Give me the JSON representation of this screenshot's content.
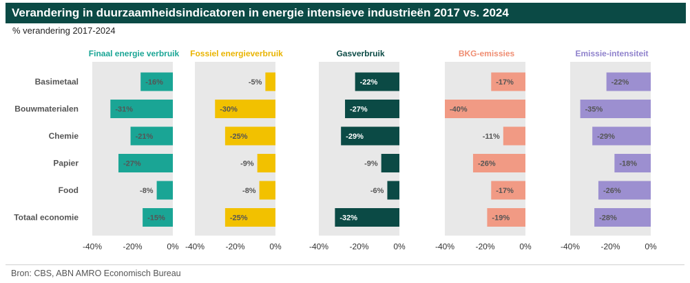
{
  "title": "Verandering in duurzaamheidsindicatoren in energie intensieve industrieën 2017 vs. 2024",
  "subtitle": "% verandering 2017-2024",
  "source": "Bron: CBS, ABN AMRO Economisch Bureau",
  "colors": {
    "title_bg": "#0b4a45",
    "panel_bg": "#e8e8e8",
    "row_label": "#555555"
  },
  "chart_data": {
    "type": "bar",
    "orientation": "horizontal",
    "categories": [
      "Basimetaal",
      "Bouwmaterialen",
      "Chemie",
      "Papier",
      "Food",
      "Totaal economie"
    ],
    "xlim": [
      -40,
      0
    ],
    "ticks": [
      -40,
      -20,
      0
    ],
    "tick_labels": [
      "-40%",
      "-20%",
      "0%"
    ],
    "series": [
      {
        "name": "Finaal energie verbruik",
        "color": "#1aa595",
        "title_color": "#1aa595",
        "values": [
          -16,
          -31,
          -21,
          -27,
          -8,
          -15
        ],
        "labels": [
          "-16%",
          "-31%",
          "-21%",
          "-27%",
          "-8%",
          "-15%"
        ]
      },
      {
        "name": "Fossiel energieverbruik",
        "color": "#f2c100",
        "title_color": "#e9b400",
        "values": [
          -5,
          -30,
          -25,
          -9,
          -8,
          -25
        ],
        "labels": [
          "-5%",
          "-30%",
          "-25%",
          "-9%",
          "-8%",
          "-25%"
        ]
      },
      {
        "name": "Gasverbruik",
        "color": "#0b4a45",
        "title_color": "#0b4a45",
        "values": [
          -22,
          -27,
          -29,
          -9,
          -6,
          -32
        ],
        "labels": [
          "-22%",
          "-27%",
          "-29%",
          "-9%",
          "-6%",
          "-32%"
        ]
      },
      {
        "name": "BKG-emissies",
        "color": "#f19a84",
        "title_color": "#ef8d72",
        "values": [
          -17,
          -40,
          -11,
          -26,
          -17,
          -19
        ],
        "labels": [
          "-17%",
          "-40%",
          "-11%",
          "-26%",
          "-17%",
          "-19%"
        ]
      },
      {
        "name": "Emissie-intensiteit",
        "color": "#9c8fd0",
        "title_color": "#8f82cc",
        "values": [
          -22,
          -35,
          -29,
          -18,
          -26,
          -28
        ],
        "labels": [
          "-22%",
          "-35%",
          "-29%",
          "-18%",
          "-26%",
          "-28%"
        ]
      }
    ]
  }
}
